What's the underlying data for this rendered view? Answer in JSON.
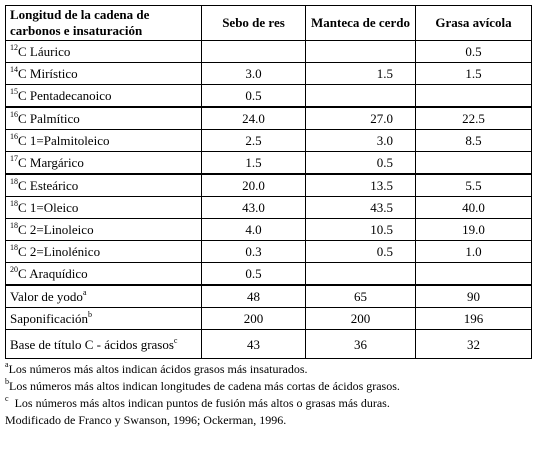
{
  "table": {
    "headers": [
      "Longitud de la cadena de carbonos e insaturación",
      "Sebo de res",
      "Manteca de cerdo",
      "Grasa avícola"
    ],
    "rows": [
      {
        "sup": "12",
        "name": "C Láurico",
        "sebo": "",
        "manteca": "",
        "grasa": "0.5"
      },
      {
        "sup": "14",
        "name": "C Mirístico",
        "sebo": "3.0",
        "manteca": "1.5",
        "grasa": "1.5"
      },
      {
        "sup": "15",
        "name": "C Pentadecanoico",
        "sebo": "0.5",
        "manteca": "",
        "grasa": ""
      },
      {
        "sup": "16",
        "name": "C Palmítico",
        "sebo": "24.0",
        "manteca": "27.0",
        "grasa": "22.5"
      },
      {
        "sup": "16",
        "name": "C 1=Palmitoleico",
        "sebo": "2.5",
        "manteca": "3.0",
        "grasa": "8.5"
      },
      {
        "sup": "17",
        "name": "C Margárico",
        "sebo": "1.5",
        "manteca": "0.5",
        "grasa": ""
      },
      {
        "sup": "18",
        "name": "C Esteárico",
        "sebo": "20.0",
        "manteca": "13.5",
        "grasa": "5.5"
      },
      {
        "sup": "18",
        "name": "C 1=Oleico",
        "sebo": "43.0",
        "manteca": "43.5",
        "grasa": "40.0"
      },
      {
        "sup": "18",
        "name": "C 2=Linoleico",
        "sebo": "4.0",
        "manteca": "10.5",
        "grasa": "19.0"
      },
      {
        "sup": "18",
        "name": "C 2=Linolénico",
        "sebo": "0.3",
        "manteca": "0.5",
        "grasa": "1.0"
      },
      {
        "sup": "20",
        "name": "C Araquídico",
        "sebo": "0.5",
        "manteca": "",
        "grasa": ""
      }
    ],
    "summary": [
      {
        "name": "Valor de yodo",
        "sup": "a",
        "sebo": "48",
        "manteca": "65",
        "grasa": "90"
      },
      {
        "name": "Saponificación",
        "sup": "b",
        "sebo": "200",
        "manteca": "200",
        "grasa": "196"
      },
      {
        "name": "Base de título C - ácidos grasos",
        "sup": "c",
        "sebo": "43",
        "manteca": "36",
        "grasa": "32"
      }
    ]
  },
  "footnotes": [
    {
      "mark": "a",
      "text": "Los números más altos indican ácidos grasos más insaturados."
    },
    {
      "mark": "b",
      "text": "Los números más altos indican longitudes de cadena más cortas de ácidos grasos."
    },
    {
      "mark": "c",
      "text": "  Los números más altos indican puntos de fusión más altos o grasas más duras."
    }
  ],
  "source": "Modificado de Franco y Swanson, 1996; Ockerman, 1996."
}
